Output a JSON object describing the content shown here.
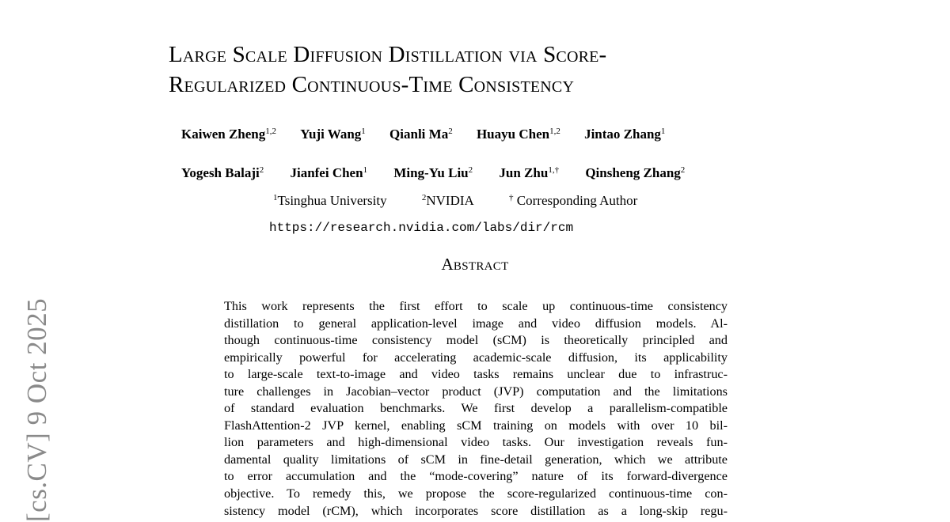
{
  "sidebar": {
    "arxiv_stamp": "[cs.CV]  9 Oct 2025"
  },
  "title_lines": [
    "Large Scale Diffusion Distillation via Score-",
    "Regularized Continuous-Time Consistency"
  ],
  "authors_row1": [
    {
      "name": "Kaiwen Zheng",
      "sup": "1,2"
    },
    {
      "name": "Yuji Wang",
      "sup": "1"
    },
    {
      "name": "Qianli Ma",
      "sup": "2"
    },
    {
      "name": "Huayu Chen",
      "sup": "1,2"
    },
    {
      "name": "Jintao Zhang",
      "sup": "1"
    }
  ],
  "authors_row2": [
    {
      "name": "Yogesh Balaji",
      "sup": "2"
    },
    {
      "name": "Jianfei Chen",
      "sup": "1"
    },
    {
      "name": "Ming-Yu Liu",
      "sup": "2"
    },
    {
      "name": "Jun Zhu",
      "sup": "1,†"
    },
    {
      "name": "Qinsheng Zhang",
      "sup": "2"
    }
  ],
  "affiliations": [
    {
      "sup": "1",
      "text": "Tsinghua University"
    },
    {
      "sup": "2",
      "text": "NVIDIA"
    },
    {
      "sup": "†",
      "text": " Corresponding Author"
    }
  ],
  "url": "https://research.nvidia.com/labs/dir/rcm",
  "abstract": {
    "heading": "Abstract",
    "lines": [
      "This work represents the first effort to scale up continuous-time consistency",
      "distillation to general application-level image and video diffusion models. Al-",
      "though continuous-time consistency model (sCM) is theoretically principled and",
      "empirically powerful for accelerating academic-scale diffusion, its applicability",
      "to large-scale text-to-image and video tasks remains unclear due to infrastruc-",
      "ture challenges in Jacobian–vector product (JVP) computation and the limitations",
      "of standard evaluation benchmarks. We first develop a parallelism-compatible",
      "FlashAttention-2 JVP kernel, enabling sCM training on models with over 10 bil-",
      "lion parameters and high-dimensional video tasks. Our investigation reveals fun-",
      "damental quality limitations of sCM in fine-detail generation, which we attribute",
      "to error accumulation and the “mode-covering” nature of its forward-divergence",
      "objective. To remedy this, we propose the score-regularized continuous-time con-",
      "sistency model (rCM), which incorporates score distillation as a long-skip regu-"
    ]
  }
}
